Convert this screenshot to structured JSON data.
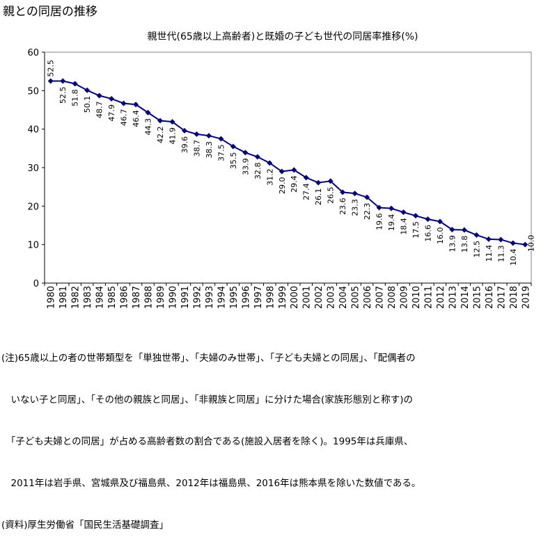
{
  "page": {
    "title": "親との同居の推移"
  },
  "chart_data": {
    "type": "line",
    "title": "親世代(65歳以上高齢者)と既婚の子ども世代の同居率推移(%)",
    "xlabel": "",
    "ylabel": "",
    "ylim": [
      0,
      60
    ],
    "yticks": [
      0,
      10,
      20,
      30,
      40,
      50,
      60
    ],
    "grid": false,
    "legend": "none",
    "color": "#000080",
    "x": [
      "1980",
      "1981",
      "1982",
      "1983",
      "1984",
      "1985",
      "1986",
      "1987",
      "1988",
      "1989",
      "1990",
      "1991",
      "1992",
      "1993",
      "1994",
      "1995",
      "1996",
      "1997",
      "1998",
      "1999",
      "2000",
      "2001",
      "2002",
      "2003",
      "2004",
      "2005",
      "2006",
      "2007",
      "2008",
      "2009",
      "2010",
      "2011",
      "2012",
      "2013",
      "2014",
      "2015",
      "2016",
      "2017",
      "2018",
      "2019"
    ],
    "values": [
      52.5,
      52.5,
      51.8,
      50.1,
      48.7,
      47.9,
      46.7,
      46.4,
      44.3,
      42.2,
      41.9,
      39.6,
      38.7,
      38.3,
      37.5,
      35.5,
      33.9,
      32.8,
      31.2,
      29.0,
      29.4,
      27.4,
      26.1,
      26.5,
      23.6,
      23.3,
      22.3,
      19.6,
      19.4,
      18.4,
      17.5,
      16.6,
      16.0,
      13.9,
      13.8,
      12.5,
      11.4,
      11.3,
      10.4,
      10.0
    ],
    "data_labels": [
      "52.5",
      "52.5",
      "51.8",
      "50.1",
      "48.7",
      "47.9",
      "46.7",
      "46.4",
      "44.3",
      "42.2",
      "41.9",
      "39.6",
      "38.7",
      "38.3",
      "37.5",
      "35.5",
      "33.9",
      "32.8",
      "31.2",
      "29.0",
      "29.4",
      "27.4",
      "26.1",
      "26.5",
      "23.6",
      "23.3",
      "22.3",
      "19.6",
      "19.4",
      "18.4",
      "17.5",
      "16.6",
      "16.0",
      "13.9",
      "13.8",
      "12.5",
      "11.4",
      "11.3",
      "10.4",
      "10.0"
    ]
  },
  "notes": [
    "(注)65歳以上の者の世帯類型を「単独世帯」、「夫婦のみ世帯」、「子ども夫婦との同居」、「配偶者の",
    "　いない子と同居」、「その他の親族と同居」、「非親族と同居」に分けた場合(家族形態別と称す)の",
    "　「子ども夫婦との同居」が占める高齢者数の割合である(施設入居者を除く)。1995年は兵庫県、",
    "　2011年は岩手県、宮城県及び福島県、2012年は福島県、2016年は熊本県を除いた数値である。",
    "(資料)厚生労働省「国民生活基礎調査」"
  ]
}
